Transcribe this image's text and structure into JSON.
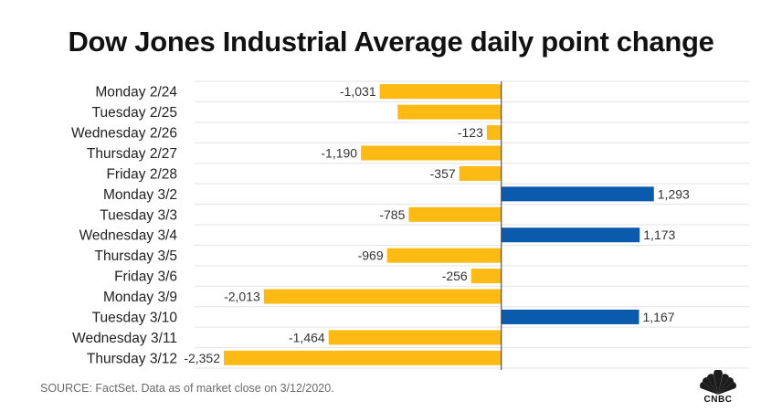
{
  "title": "Dow Jones Industrial Average daily point change",
  "source": "SOURCE: FactSet. Data as of market close on 3/12/2020.",
  "logo_text": "CNBC",
  "colors": {
    "negative": "#FDBA12",
    "positive": "#0A5BAE",
    "grid": "#E3E3E3",
    "axis": "#333333"
  },
  "chart_data": {
    "type": "bar",
    "orientation": "horizontal",
    "title": "Dow Jones Industrial Average daily point change",
    "xlabel": "",
    "ylabel": "",
    "xlim": [
      -2600,
      2100
    ],
    "grid": true,
    "categories": [
      "Monday 2/24",
      "Tuesday 2/25",
      "Wednesday 2/26",
      "Thursday 2/27",
      "Friday 2/28",
      "Monday 3/2",
      "Tuesday 3/3",
      "Wednesday 3/4",
      "Thursday 3/5",
      "Friday 3/6",
      "Monday 3/9",
      "Tuesday 3/10",
      "Wednesday 3/11",
      "Thursday 3/12"
    ],
    "values": [
      -1031,
      -879,
      -123,
      -1190,
      -357,
      1293,
      -785,
      1173,
      -969,
      -256,
      -2013,
      1167,
      -1464,
      -2352
    ],
    "labels": [
      "-1,031",
      "",
      "-123",
      "-1,190",
      "-357",
      "1,293",
      "-785",
      "1,173",
      "-969",
      "-256",
      "-2,013",
      "1,167",
      "-1,464",
      "-2,352"
    ]
  }
}
